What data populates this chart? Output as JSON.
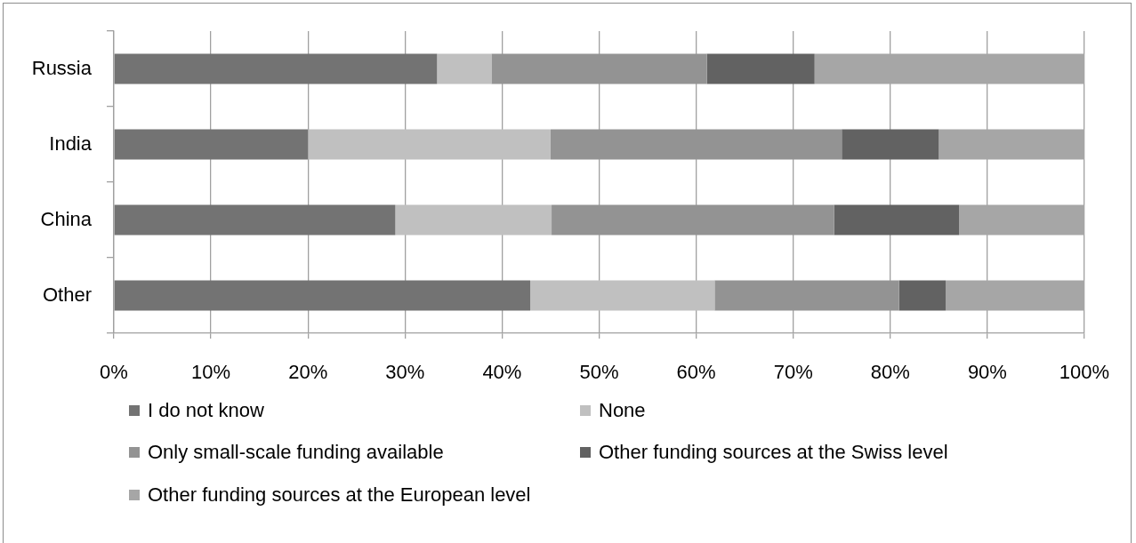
{
  "chart_data": {
    "type": "bar",
    "orientation": "horizontal",
    "stacked": true,
    "categories": [
      "Russia",
      "India",
      "China",
      "Other"
    ],
    "series": [
      {
        "name": "I do not know",
        "color": "#737373",
        "values": [
          33.3,
          20,
          29.0,
          42.9
        ]
      },
      {
        "name": "None",
        "color": "#c0c0c0",
        "values": [
          5.6,
          25,
          16.1,
          19.0
        ]
      },
      {
        "name": "Only small-scale funding available",
        "color": "#939393",
        "values": [
          22.2,
          30,
          29.1,
          19.0
        ]
      },
      {
        "name": "Other funding sources at the Swiss level",
        "color": "#626262",
        "values": [
          11.1,
          10,
          12.9,
          4.8
        ]
      },
      {
        "name": "Other funding sources at the European level",
        "color": "#a6a6a6",
        "values": [
          27.8,
          15,
          12.9,
          14.3
        ]
      }
    ],
    "xlim": [
      0,
      100
    ],
    "xticks": [
      {
        "value": 0,
        "label": "0%"
      },
      {
        "value": 10,
        "label": "10%"
      },
      {
        "value": 20,
        "label": "20%"
      },
      {
        "value": 30,
        "label": "30%"
      },
      {
        "value": 40,
        "label": "40%"
      },
      {
        "value": 50,
        "label": "50%"
      },
      {
        "value": 60,
        "label": "60%"
      },
      {
        "value": 70,
        "label": "70%"
      },
      {
        "value": 80,
        "label": "80%"
      },
      {
        "value": 90,
        "label": "90%"
      },
      {
        "value": 100,
        "label": "100%"
      }
    ],
    "grid": "x",
    "legend": "bottom"
  }
}
